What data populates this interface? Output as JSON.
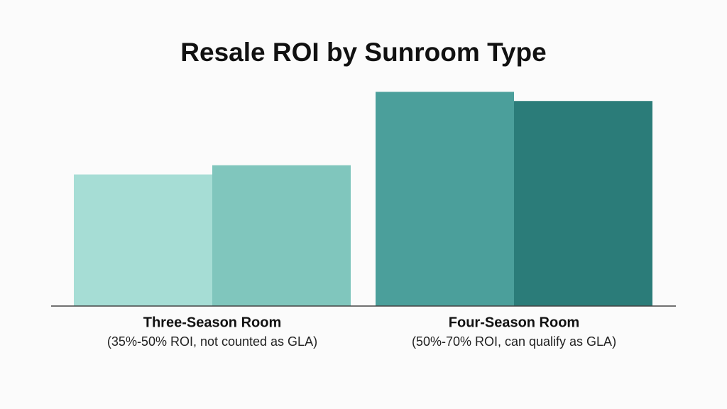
{
  "chart_data": {
    "type": "bar",
    "title": "Resale ROI by Sunroom Type",
    "categories": [
      "Three-Season Room",
      "Four-Season Room"
    ],
    "category_notes": [
      "(35%-50% ROI, not counted as GLA)",
      "(50%-70% ROI, can qualify as GLA)"
    ],
    "series": [
      {
        "colors": [
          "#a6ddd5",
          "#4b9f9b"
        ],
        "values": [
          43,
          70
        ]
      },
      {
        "colors": [
          "#80c6bd",
          "#2b7c79"
        ],
        "values": [
          46,
          67
        ]
      }
    ]
  }
}
